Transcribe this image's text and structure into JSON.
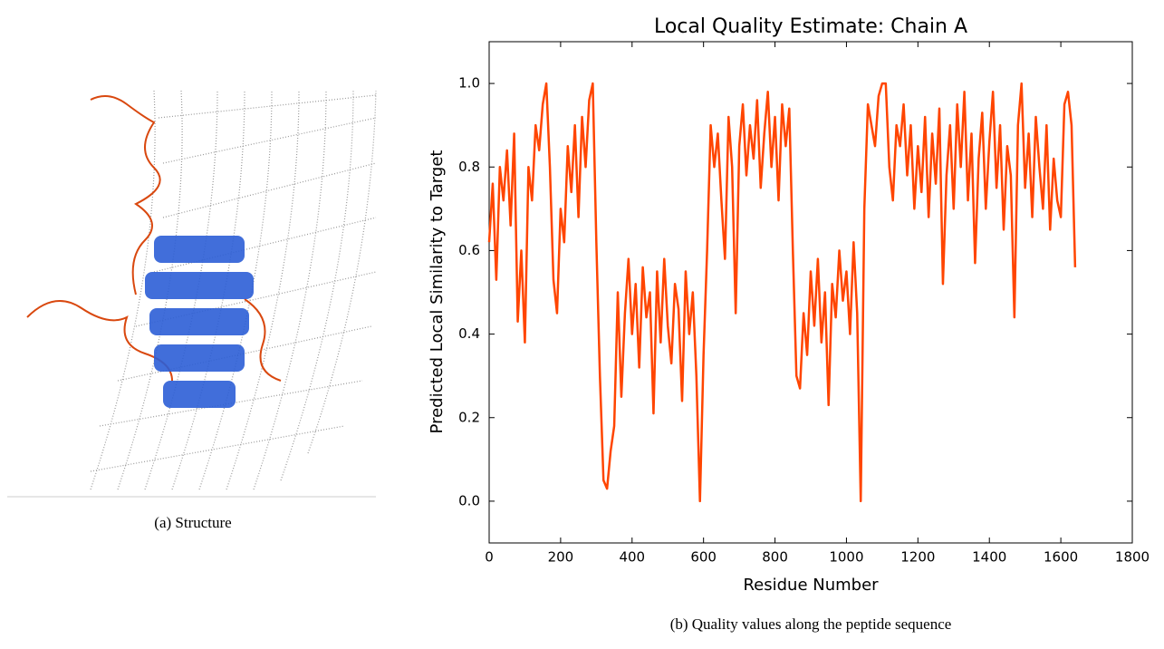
{
  "captions": [
    "(a) Structure",
    "(b) Quality values along the peptide sequence"
  ],
  "chart_data": {
    "type": "line",
    "title": "Local Quality Estimate: Chain A",
    "x_label": "Residue Number",
    "y_label": "Predicted Local Similarity to Target",
    "color": "#ff4500",
    "x": [
      0,
      10,
      20,
      30,
      40,
      50,
      60,
      70,
      80,
      90,
      100,
      110,
      120,
      130,
      140,
      150,
      160,
      170,
      180,
      190,
      200,
      210,
      220,
      230,
      240,
      250,
      260,
      270,
      280,
      290,
      300,
      310,
      320,
      330,
      340,
      350,
      360,
      370,
      380,
      390,
      400,
      410,
      420,
      430,
      440,
      450,
      460,
      470,
      480,
      490,
      500,
      510,
      520,
      530,
      540,
      550,
      560,
      570,
      580,
      590,
      600,
      610,
      620,
      630,
      640,
      650,
      660,
      670,
      680,
      690,
      700,
      710,
      720,
      730,
      740,
      750,
      760,
      770,
      780,
      790,
      800,
      810,
      820,
      830,
      840,
      850,
      860,
      870,
      880,
      890,
      900,
      910,
      920,
      930,
      940,
      950,
      960,
      970,
      980,
      990,
      1000,
      1010,
      1020,
      1030,
      1040,
      1050,
      1060,
      1070,
      1080,
      1090,
      1100,
      1110,
      1120,
      1130,
      1140,
      1150,
      1160,
      1170,
      1180,
      1190,
      1200,
      1210,
      1220,
      1230,
      1240,
      1250,
      1260,
      1270,
      1280,
      1290,
      1300,
      1310,
      1320,
      1330,
      1340,
      1350,
      1360,
      1370,
      1380,
      1390,
      1400,
      1410,
      1420,
      1430,
      1440,
      1450,
      1460,
      1470,
      1480,
      1490,
      1500,
      1510,
      1520,
      1530,
      1540,
      1550,
      1560,
      1570,
      1580,
      1590,
      1600,
      1610,
      1620,
      1630,
      1640
    ],
    "values": [
      0.62,
      0.76,
      0.53,
      0.8,
      0.72,
      0.84,
      0.66,
      0.88,
      0.43,
      0.6,
      0.38,
      0.8,
      0.72,
      0.9,
      0.84,
      0.95,
      1.0,
      0.8,
      0.53,
      0.45,
      0.7,
      0.62,
      0.85,
      0.74,
      0.9,
      0.68,
      0.92,
      0.8,
      0.96,
      1.0,
      0.62,
      0.3,
      0.05,
      0.03,
      0.12,
      0.18,
      0.5,
      0.25,
      0.45,
      0.58,
      0.4,
      0.52,
      0.32,
      0.56,
      0.44,
      0.5,
      0.21,
      0.55,
      0.38,
      0.58,
      0.42,
      0.33,
      0.52,
      0.46,
      0.24,
      0.55,
      0.4,
      0.5,
      0.3,
      0.0,
      0.35,
      0.6,
      0.9,
      0.8,
      0.88,
      0.72,
      0.58,
      0.92,
      0.8,
      0.45,
      0.85,
      0.95,
      0.78,
      0.9,
      0.82,
      0.96,
      0.75,
      0.88,
      0.98,
      0.8,
      0.92,
      0.72,
      0.95,
      0.85,
      0.94,
      0.6,
      0.3,
      0.27,
      0.45,
      0.35,
      0.55,
      0.42,
      0.58,
      0.38,
      0.5,
      0.23,
      0.52,
      0.44,
      0.6,
      0.48,
      0.55,
      0.4,
      0.62,
      0.45,
      0.0,
      0.7,
      0.95,
      0.9,
      0.85,
      0.97,
      1.0,
      1.0,
      0.8,
      0.72,
      0.9,
      0.85,
      0.95,
      0.78,
      0.9,
      0.7,
      0.85,
      0.74,
      0.92,
      0.68,
      0.88,
      0.76,
      0.94,
      0.52,
      0.78,
      0.9,
      0.7,
      0.95,
      0.8,
      0.98,
      0.72,
      0.88,
      0.57,
      0.82,
      0.93,
      0.7,
      0.86,
      0.98,
      0.75,
      0.9,
      0.65,
      0.85,
      0.78,
      0.44,
      0.9,
      1.0,
      0.75,
      0.88,
      0.68,
      0.92,
      0.8,
      0.7,
      0.9,
      0.65,
      0.82,
      0.72,
      0.68,
      0.95,
      0.98,
      0.9,
      0.56
    ],
    "xlim": [
      0,
      1800
    ],
    "xticks": [
      0,
      200,
      400,
      600,
      800,
      1000,
      1200,
      1400,
      1600,
      1800
    ],
    "ylim": [
      -0.1,
      1.1
    ],
    "yticks": [
      {
        "value": 0,
        "label": "0.0"
      },
      0.2,
      0.4,
      0.6,
      0.8,
      {
        "value": 1,
        "label": "1.0"
      }
    ]
  }
}
